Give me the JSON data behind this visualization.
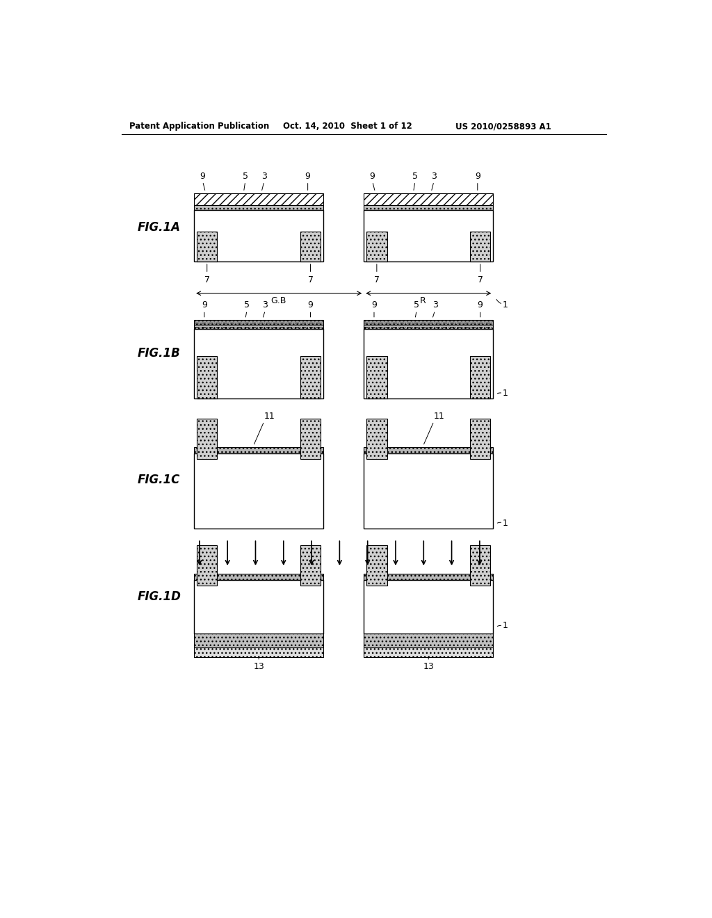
{
  "bg_color": "#ffffff",
  "header_left": "Patent Application Publication",
  "header_mid": "Oct. 14, 2010  Sheet 1 of 12",
  "header_right": "US 2010/0258893 A1",
  "fig_labels": [
    "FIG.1A",
    "FIG.1B",
    "FIG.1C",
    "FIG.1D"
  ],
  "line_color": "#000000",
  "hatch_color": "#000000",
  "dot_fill": "#d8d8d8",
  "hatch_fill": "#ffffff",
  "strip_fill": "#b0b0b0"
}
